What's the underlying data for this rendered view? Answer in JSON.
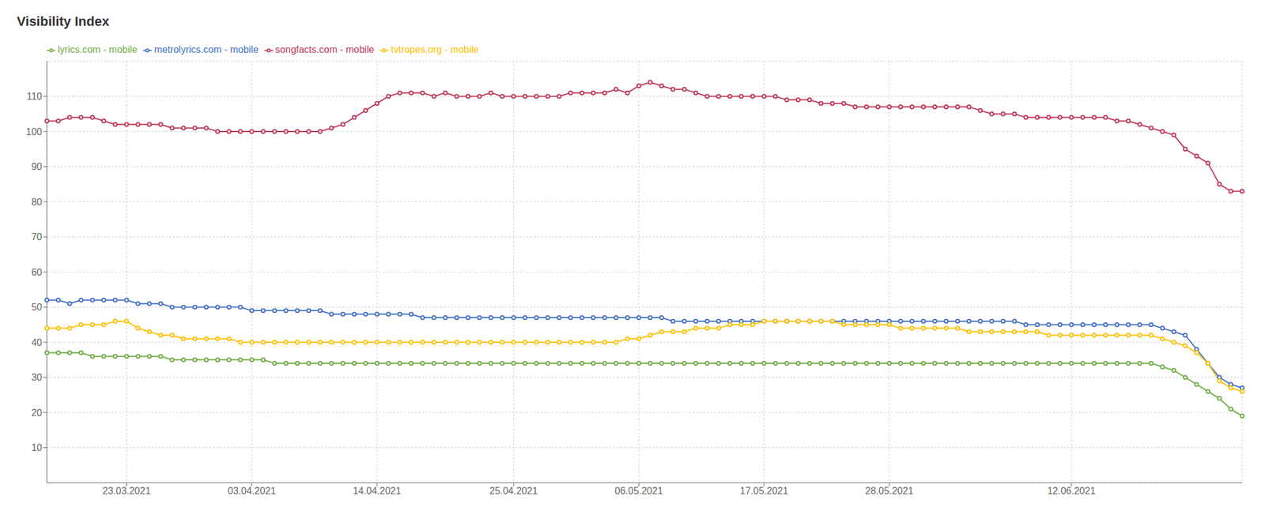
{
  "chart_data": {
    "type": "line",
    "title": "Visibility Index",
    "categories": [
      null,
      null,
      null,
      null,
      null,
      null,
      null,
      "23.03.2021",
      null,
      null,
      null,
      null,
      null,
      null,
      null,
      null,
      null,
      null,
      "03.04.2021",
      null,
      null,
      null,
      null,
      null,
      null,
      null,
      null,
      null,
      null,
      "14.04.2021",
      null,
      null,
      null,
      null,
      null,
      null,
      null,
      null,
      null,
      null,
      null,
      "25.04.2021",
      null,
      null,
      null,
      null,
      null,
      null,
      null,
      null,
      null,
      null,
      "06.05.2021",
      null,
      null,
      null,
      null,
      null,
      null,
      null,
      null,
      null,
      null,
      "17.05.2021",
      null,
      null,
      null,
      null,
      null,
      null,
      null,
      null,
      null,
      null,
      "28.05.2021",
      null,
      null,
      null,
      null,
      null,
      null,
      null,
      null,
      null,
      null,
      null,
      null,
      null,
      null,
      null,
      "12.06.2021",
      null,
      null,
      null,
      null,
      null,
      null,
      null,
      null,
      null,
      null,
      null,
      null,
      null,
      null,
      null
    ],
    "series": [
      {
        "name": "songfacts.com - mobile",
        "color": "#c0395a",
        "marker": "circle",
        "values": [
          103,
          103,
          104,
          104,
          104,
          103,
          102,
          102,
          102,
          102,
          102,
          101,
          101,
          101,
          101,
          100,
          100,
          100,
          100,
          100,
          100,
          100,
          100,
          100,
          100,
          101,
          102,
          104,
          106,
          108,
          110,
          111,
          111,
          111,
          110,
          111,
          110,
          110,
          110,
          111,
          110,
          110,
          110,
          110,
          110,
          110,
          111,
          111,
          111,
          111,
          112,
          111,
          113,
          114,
          113,
          112,
          112,
          111,
          110,
          110,
          110,
          110,
          110,
          110,
          110,
          109,
          109,
          109,
          108,
          108,
          108,
          107,
          107,
          107,
          107,
          107,
          107,
          107,
          107,
          107,
          107,
          107,
          106,
          105,
          105,
          105,
          104,
          104,
          104,
          104,
          104,
          104,
          104,
          104,
          103,
          103,
          102,
          101,
          100,
          99,
          95,
          93,
          91,
          85,
          83,
          83
        ]
      },
      {
        "name": "metrolyrics.com - mobile",
        "color": "#4472c4",
        "marker": "circle",
        "values": [
          52,
          52,
          51,
          52,
          52,
          52,
          52,
          52,
          51,
          51,
          51,
          50,
          50,
          50,
          50,
          50,
          50,
          50,
          49,
          49,
          49,
          49,
          49,
          49,
          49,
          48,
          48,
          48,
          48,
          48,
          48,
          48,
          48,
          47,
          47,
          47,
          47,
          47,
          47,
          47,
          47,
          47,
          47,
          47,
          47,
          47,
          47,
          47,
          47,
          47,
          47,
          47,
          47,
          47,
          47,
          46,
          46,
          46,
          46,
          46,
          46,
          46,
          46,
          46,
          46,
          46,
          46,
          46,
          46,
          46,
          46,
          46,
          46,
          46,
          46,
          46,
          46,
          46,
          46,
          46,
          46,
          46,
          46,
          46,
          46,
          46,
          45,
          45,
          45,
          45,
          45,
          45,
          45,
          45,
          45,
          45,
          45,
          45,
          44,
          43,
          42,
          38,
          34,
          30,
          28,
          27
        ]
      },
      {
        "name": "lyrics.com - mobile",
        "color": "#70ad47",
        "marker": "circle",
        "values": [
          37,
          37,
          37,
          37,
          36,
          36,
          36,
          36,
          36,
          36,
          36,
          35,
          35,
          35,
          35,
          35,
          35,
          35,
          35,
          35,
          34,
          34,
          34,
          34,
          34,
          34,
          34,
          34,
          34,
          34,
          34,
          34,
          34,
          34,
          34,
          34,
          34,
          34,
          34,
          34,
          34,
          34,
          34,
          34,
          34,
          34,
          34,
          34,
          34,
          34,
          34,
          34,
          34,
          34,
          34,
          34,
          34,
          34,
          34,
          34,
          34,
          34,
          34,
          34,
          34,
          34,
          34,
          34,
          34,
          34,
          34,
          34,
          34,
          34,
          34,
          34,
          34,
          34,
          34,
          34,
          34,
          34,
          34,
          34,
          34,
          34,
          34,
          34,
          34,
          34,
          34,
          34,
          34,
          34,
          34,
          34,
          34,
          34,
          33,
          32,
          30,
          28,
          26,
          24,
          21,
          19
        ]
      },
      {
        "name": "tvtropes.org - mobile",
        "color": "#ffc000",
        "marker": "circle",
        "values": [
          44,
          44,
          44,
          45,
          45,
          45,
          46,
          46,
          44,
          43,
          42,
          42,
          41,
          41,
          41,
          41,
          41,
          40,
          40,
          40,
          40,
          40,
          40,
          40,
          40,
          40,
          40,
          40,
          40,
          40,
          40,
          40,
          40,
          40,
          40,
          40,
          40,
          40,
          40,
          40,
          40,
          40,
          40,
          40,
          40,
          40,
          40,
          40,
          40,
          40,
          40,
          41,
          41,
          42,
          43,
          43,
          43,
          44,
          44,
          44,
          45,
          45,
          45,
          46,
          46,
          46,
          46,
          46,
          46,
          46,
          45,
          45,
          45,
          45,
          45,
          44,
          44,
          44,
          44,
          44,
          44,
          43,
          43,
          43,
          43,
          43,
          43,
          43,
          42,
          42,
          42,
          42,
          42,
          42,
          42,
          42,
          42,
          42,
          41,
          40,
          39,
          37,
          34,
          29,
          27,
          26
        ]
      }
    ],
    "ylim": [
      0,
      120
    ],
    "yticks": [
      10,
      20,
      30,
      40,
      50,
      60,
      70,
      80,
      90,
      100,
      110
    ],
    "grid": true,
    "legend": "upper left"
  }
}
